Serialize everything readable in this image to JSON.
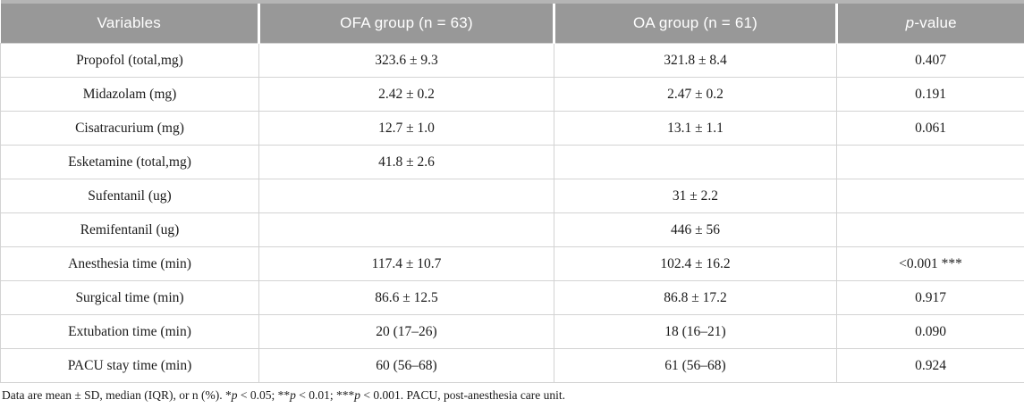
{
  "table": {
    "header": {
      "variables": "Variables",
      "ofa": "OFA group (n = 63)",
      "oa": "OA group (n = 61)",
      "p_italic": "p",
      "p_rest": "-value"
    },
    "rows": [
      [
        "Propofol (total,mg)",
        "323.6 ± 9.3",
        "321.8 ± 8.4",
        "0.407"
      ],
      [
        "Midazolam (mg)",
        "2.42 ± 0.2",
        "2.47 ± 0.2",
        "0.191"
      ],
      [
        "Cisatracurium (mg)",
        "12.7 ± 1.0",
        "13.1 ± 1.1",
        "0.061"
      ],
      [
        "Esketamine (total,mg)",
        "41.8 ± 2.6",
        "",
        ""
      ],
      [
        "Sufentanil (ug)",
        "",
        "31 ± 2.2",
        ""
      ],
      [
        "Remifentanil (ug)",
        "",
        "446 ± 56",
        ""
      ],
      [
        "Anesthesia time (min)",
        "117.4 ± 10.7",
        "102.4 ± 16.2",
        "<0.001 ***"
      ],
      [
        "Surgical time (min)",
        "86.6 ± 12.5",
        "86.8 ± 17.2",
        "0.917"
      ],
      [
        "Extubation time (min)",
        "20 (17–26)",
        "18 (16–21)",
        "0.090"
      ],
      [
        "PACU stay time (min)",
        "60 (56–68)",
        "61 (56–68)",
        "0.924"
      ]
    ]
  },
  "footnote": {
    "segments": [
      "Data are mean ± SD, median (IQR), or n (%). *",
      "p",
      " < 0.05; **",
      "p",
      " < 0.01; ***",
      "p",
      " < 0.001. PACU, post-anesthesia care unit."
    ]
  },
  "colors": {
    "header_bg": "#989898",
    "header_top_strip": "#b5b5b5",
    "header_text": "#ffffff",
    "body_border": "#d3d3d3",
    "body_text": "#1b1b1b"
  }
}
